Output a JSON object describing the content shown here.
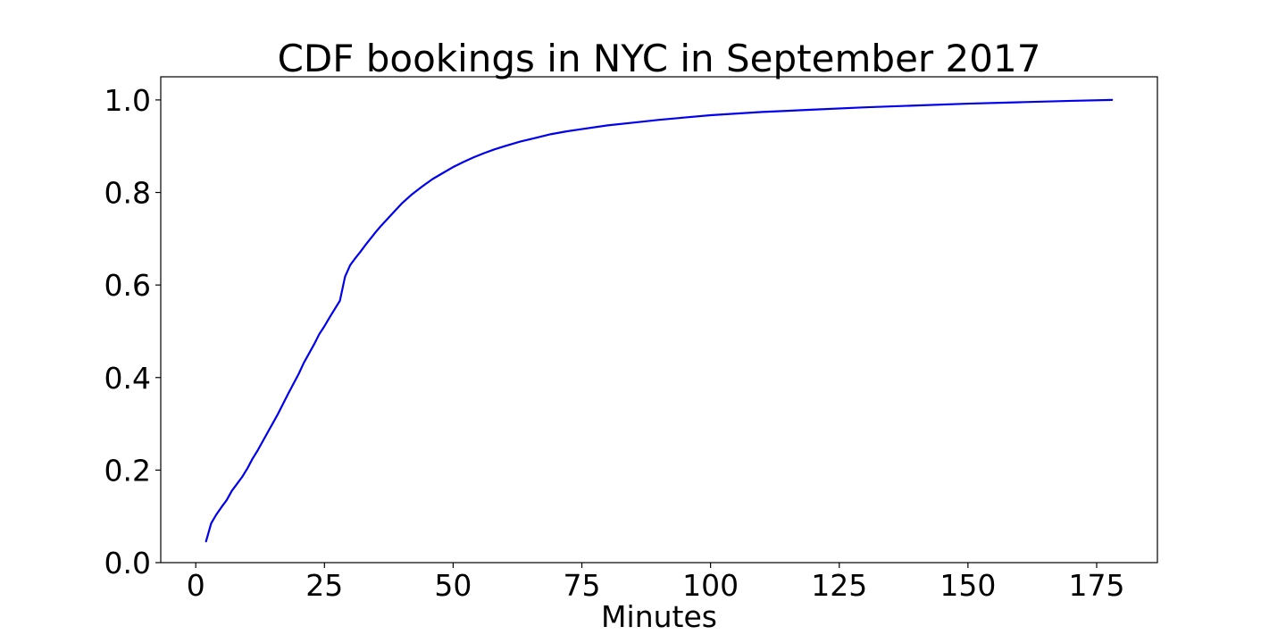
{
  "chart_data": {
    "type": "line",
    "title": "CDF bookings in NYC in September 2017",
    "xlabel": "Minutes",
    "ylabel": "",
    "xlim": [
      -6.8,
      186.8
    ],
    "ylim": [
      0.0,
      1.05
    ],
    "xticks": [
      0,
      25,
      50,
      75,
      100,
      125,
      150,
      175
    ],
    "yticks": [
      0.0,
      0.2,
      0.4,
      0.6,
      0.8,
      1.0
    ],
    "xtick_labels": [
      "0",
      "25",
      "50",
      "75",
      "100",
      "125",
      "150",
      "175"
    ],
    "ytick_labels": [
      "0.0",
      "0.2",
      "0.4",
      "0.6",
      "0.8",
      "1.0"
    ],
    "grid": false,
    "legend": "none",
    "series": [
      {
        "color": "#0000ee",
        "x": [
          2,
          3,
          4,
          5,
          6,
          7,
          8,
          9,
          10,
          11,
          12,
          13,
          14,
          15,
          16,
          17,
          18,
          19,
          20,
          21,
          22,
          23,
          24,
          25,
          26,
          27,
          28,
          29,
          30,
          31,
          32,
          33,
          34,
          35,
          36,
          38,
          40,
          42,
          44,
          46,
          48,
          50,
          52,
          54,
          56,
          58,
          60,
          63,
          66,
          69,
          72,
          75,
          80,
          85,
          90,
          95,
          100,
          110,
          120,
          130,
          140,
          150,
          160,
          170,
          178
        ],
        "y": [
          0.046,
          0.085,
          0.104,
          0.12,
          0.135,
          0.155,
          0.17,
          0.185,
          0.203,
          0.224,
          0.242,
          0.262,
          0.282,
          0.302,
          0.322,
          0.344,
          0.366,
          0.387,
          0.408,
          0.432,
          0.452,
          0.472,
          0.494,
          0.511,
          0.53,
          0.548,
          0.566,
          0.618,
          0.643,
          0.658,
          0.672,
          0.687,
          0.701,
          0.715,
          0.728,
          0.752,
          0.776,
          0.796,
          0.813,
          0.829,
          0.842,
          0.855,
          0.866,
          0.876,
          0.885,
          0.893,
          0.9,
          0.91,
          0.918,
          0.926,
          0.932,
          0.937,
          0.945,
          0.951,
          0.957,
          0.962,
          0.967,
          0.974,
          0.979,
          0.984,
          0.988,
          0.992,
          0.995,
          0.998,
          1.0
        ]
      }
    ]
  }
}
